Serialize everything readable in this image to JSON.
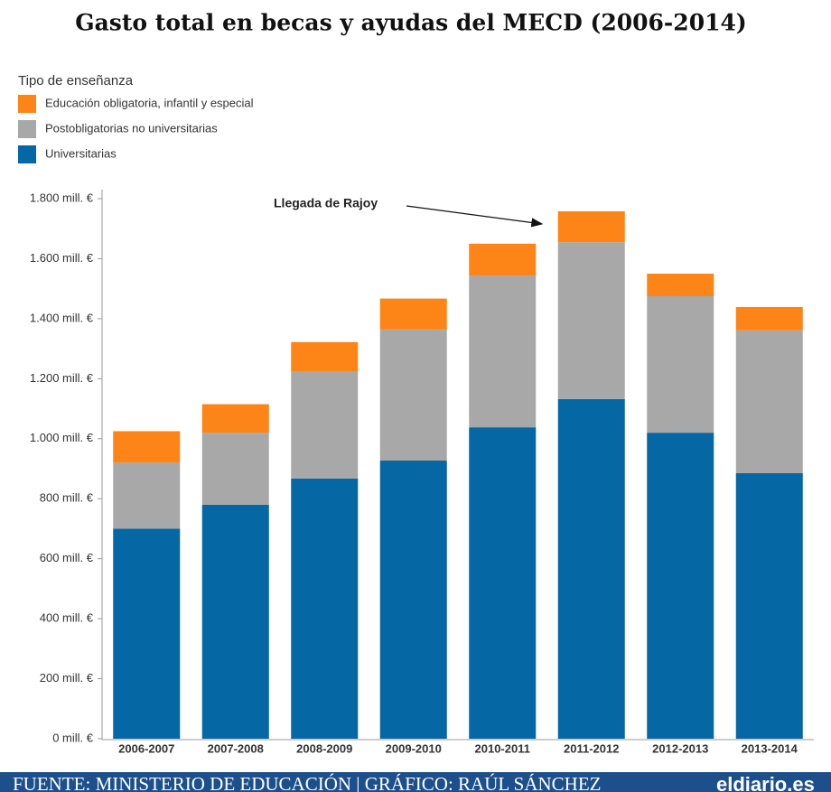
{
  "chart_data": {
    "type": "stacked_bar",
    "title": "Gasto total en becas y ayudas del MECD (2006-2014)",
    "legend_title": "Tipo de enseñanza",
    "annotation": "Llegada de Rajoy",
    "source": "FUENTE: MINISTERIO DE EDUCACIÓN | GRÁFICO: RAÚL SÁNCHEZ",
    "logo": "eldiario.es",
    "categories": [
      "2006-2007",
      "2007-2008",
      "2008-2009",
      "2009-2010",
      "2010-2011",
      "2011-2012",
      "2012-2013",
      "2013-2014"
    ],
    "series": [
      {
        "name": "Universitarias",
        "color": "#0567a3",
        "values": [
          700,
          780,
          867,
          927,
          1038,
          1132,
          1020,
          885
        ]
      },
      {
        "name": "Postobligatorias no universitarias",
        "color": "#a8a8a8",
        "values": [
          220,
          240,
          358,
          437,
          506,
          523,
          455,
          476
        ]
      },
      {
        "name": "Educación obligatoria, infantil y especial",
        "color": "#fd8416",
        "values": [
          105,
          95,
          97,
          103,
          106,
          103,
          75,
          78
        ]
      }
    ],
    "ylim": [
      0,
      1800
    ],
    "yticks": [
      {
        "value": 0,
        "label": "0 mill. €"
      },
      {
        "value": 200,
        "label": "200 mill. €"
      },
      {
        "value": 400,
        "label": "400 mill. €"
      },
      {
        "value": 600,
        "label": "600 mill. €"
      },
      {
        "value": 800,
        "label": "800 mill. €"
      },
      {
        "value": 1000,
        "label": "1.000 mill. €"
      },
      {
        "value": 1200,
        "label": "1.200 mill. €"
      },
      {
        "value": 1400,
        "label": "1.400 mill. €"
      },
      {
        "value": 1600,
        "label": "1.600 mill. €"
      },
      {
        "value": 1800,
        "label": "1.800 mill. €"
      }
    ],
    "grid": false
  }
}
